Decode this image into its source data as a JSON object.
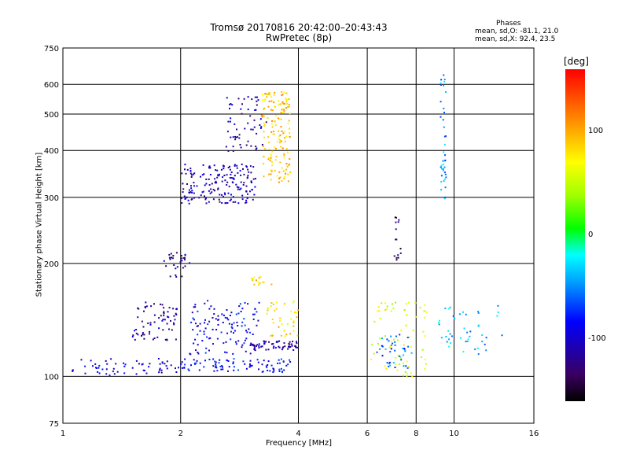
{
  "header": {
    "title_line1": "Tromsø 20170816 20:42:00–20:43:43",
    "title_line2": "RwPretec (8p)",
    "stats_heading": "Phases",
    "stats_o": "mean, sd,O: -81.1, 21.0",
    "stats_x": "mean, sd,X:  92.4, 23.5"
  },
  "colorbar": {
    "unit": "[deg]",
    "ticks": [
      {
        "label": "100",
        "value": 100
      },
      {
        "label": "0",
        "value": 0
      },
      {
        "label": "-100",
        "value": -100
      }
    ],
    "range": [
      -160,
      160
    ]
  },
  "chart_data": {
    "type": "scatter",
    "xlabel": "Frequency [MHz]",
    "ylabel": "Stationary phase Virtual Height [km]",
    "x_scale": "log",
    "y_scale": "log",
    "xlim": [
      1,
      16
    ],
    "ylim": [
      75,
      750
    ],
    "xticks": [
      {
        "label": "1",
        "value": 1
      },
      {
        "label": "2",
        "value": 2
      },
      {
        "label": "4",
        "value": 4
      },
      {
        "label": "6",
        "value": 6
      },
      {
        "label": "8",
        "value": 8
      },
      {
        "label": "10",
        "value": 10
      },
      {
        "label": "16",
        "value": 16
      }
    ],
    "yticks": [
      {
        "label": "75",
        "value": 75
      },
      {
        "label": "100",
        "value": 100
      },
      {
        "label": "200",
        "value": 200
      },
      {
        "label": "300",
        "value": 300
      },
      {
        "label": "400",
        "value": 400
      },
      {
        "label": "500",
        "value": 500
      },
      {
        "label": "600",
        "value": 600
      },
      {
        "label": "750",
        "value": 750
      }
    ],
    "grid": true,
    "color_quantity": "phase [deg]",
    "clusters": [
      {
        "x_range": [
          1.05,
          2.0
        ],
        "y_range": [
          101,
          112
        ],
        "phase": -100,
        "n": 60
      },
      {
        "x_range": [
          1.5,
          1.95
        ],
        "y_range": [
          125,
          160
        ],
        "phase": -115,
        "n": 70
      },
      {
        "x_range": [
          2.0,
          3.8
        ],
        "y_range": [
          103,
          112
        ],
        "phase": -85,
        "n": 90
      },
      {
        "x_range": [
          2.1,
          3.2
        ],
        "y_range": [
          115,
          160
        ],
        "phase": -90,
        "n": 120
      },
      {
        "x_range": [
          3.0,
          4.0
        ],
        "y_range": [
          118,
          125
        ],
        "phase": -110,
        "n": 60
      },
      {
        "x_range": [
          3.3,
          4.0
        ],
        "y_range": [
          128,
          160
        ],
        "phase": 80,
        "n": 40
      },
      {
        "x_range": [
          3.0,
          3.4
        ],
        "y_range": [
          175,
          185
        ],
        "phase": 85,
        "n": 15
      },
      {
        "x_range": [
          1.8,
          2.1
        ],
        "y_range": [
          185,
          215
        ],
        "phase": -120,
        "n": 30
      },
      {
        "x_range": [
          2.0,
          3.1
        ],
        "y_range": [
          290,
          370
        ],
        "phase": -105,
        "n": 180
      },
      {
        "x_range": [
          2.6,
          3.3
        ],
        "y_range": [
          400,
          560
        ],
        "phase": -110,
        "n": 60
      },
      {
        "x_range": [
          3.2,
          3.8
        ],
        "y_range": [
          330,
          580
        ],
        "phase": 90,
        "n": 160
      },
      {
        "x_range": [
          6.1,
          8.5
        ],
        "y_range": [
          100,
          160
        ],
        "phase": 60,
        "n": 70
      },
      {
        "x_range": [
          6.3,
          7.8
        ],
        "y_range": [
          105,
          130
        ],
        "phase": -60,
        "n": 40
      },
      {
        "x_range": [
          9.2,
          9.5
        ],
        "y_range": [
          290,
          650
        ],
        "phase": -45,
        "n": 40
      },
      {
        "x_range": [
          7.0,
          7.3
        ],
        "y_range": [
          200,
          270
        ],
        "phase": -140,
        "n": 15
      },
      {
        "x_range": [
          9.0,
          13.5
        ],
        "y_range": [
          115,
          155
        ],
        "phase": -40,
        "n": 45
      }
    ]
  }
}
